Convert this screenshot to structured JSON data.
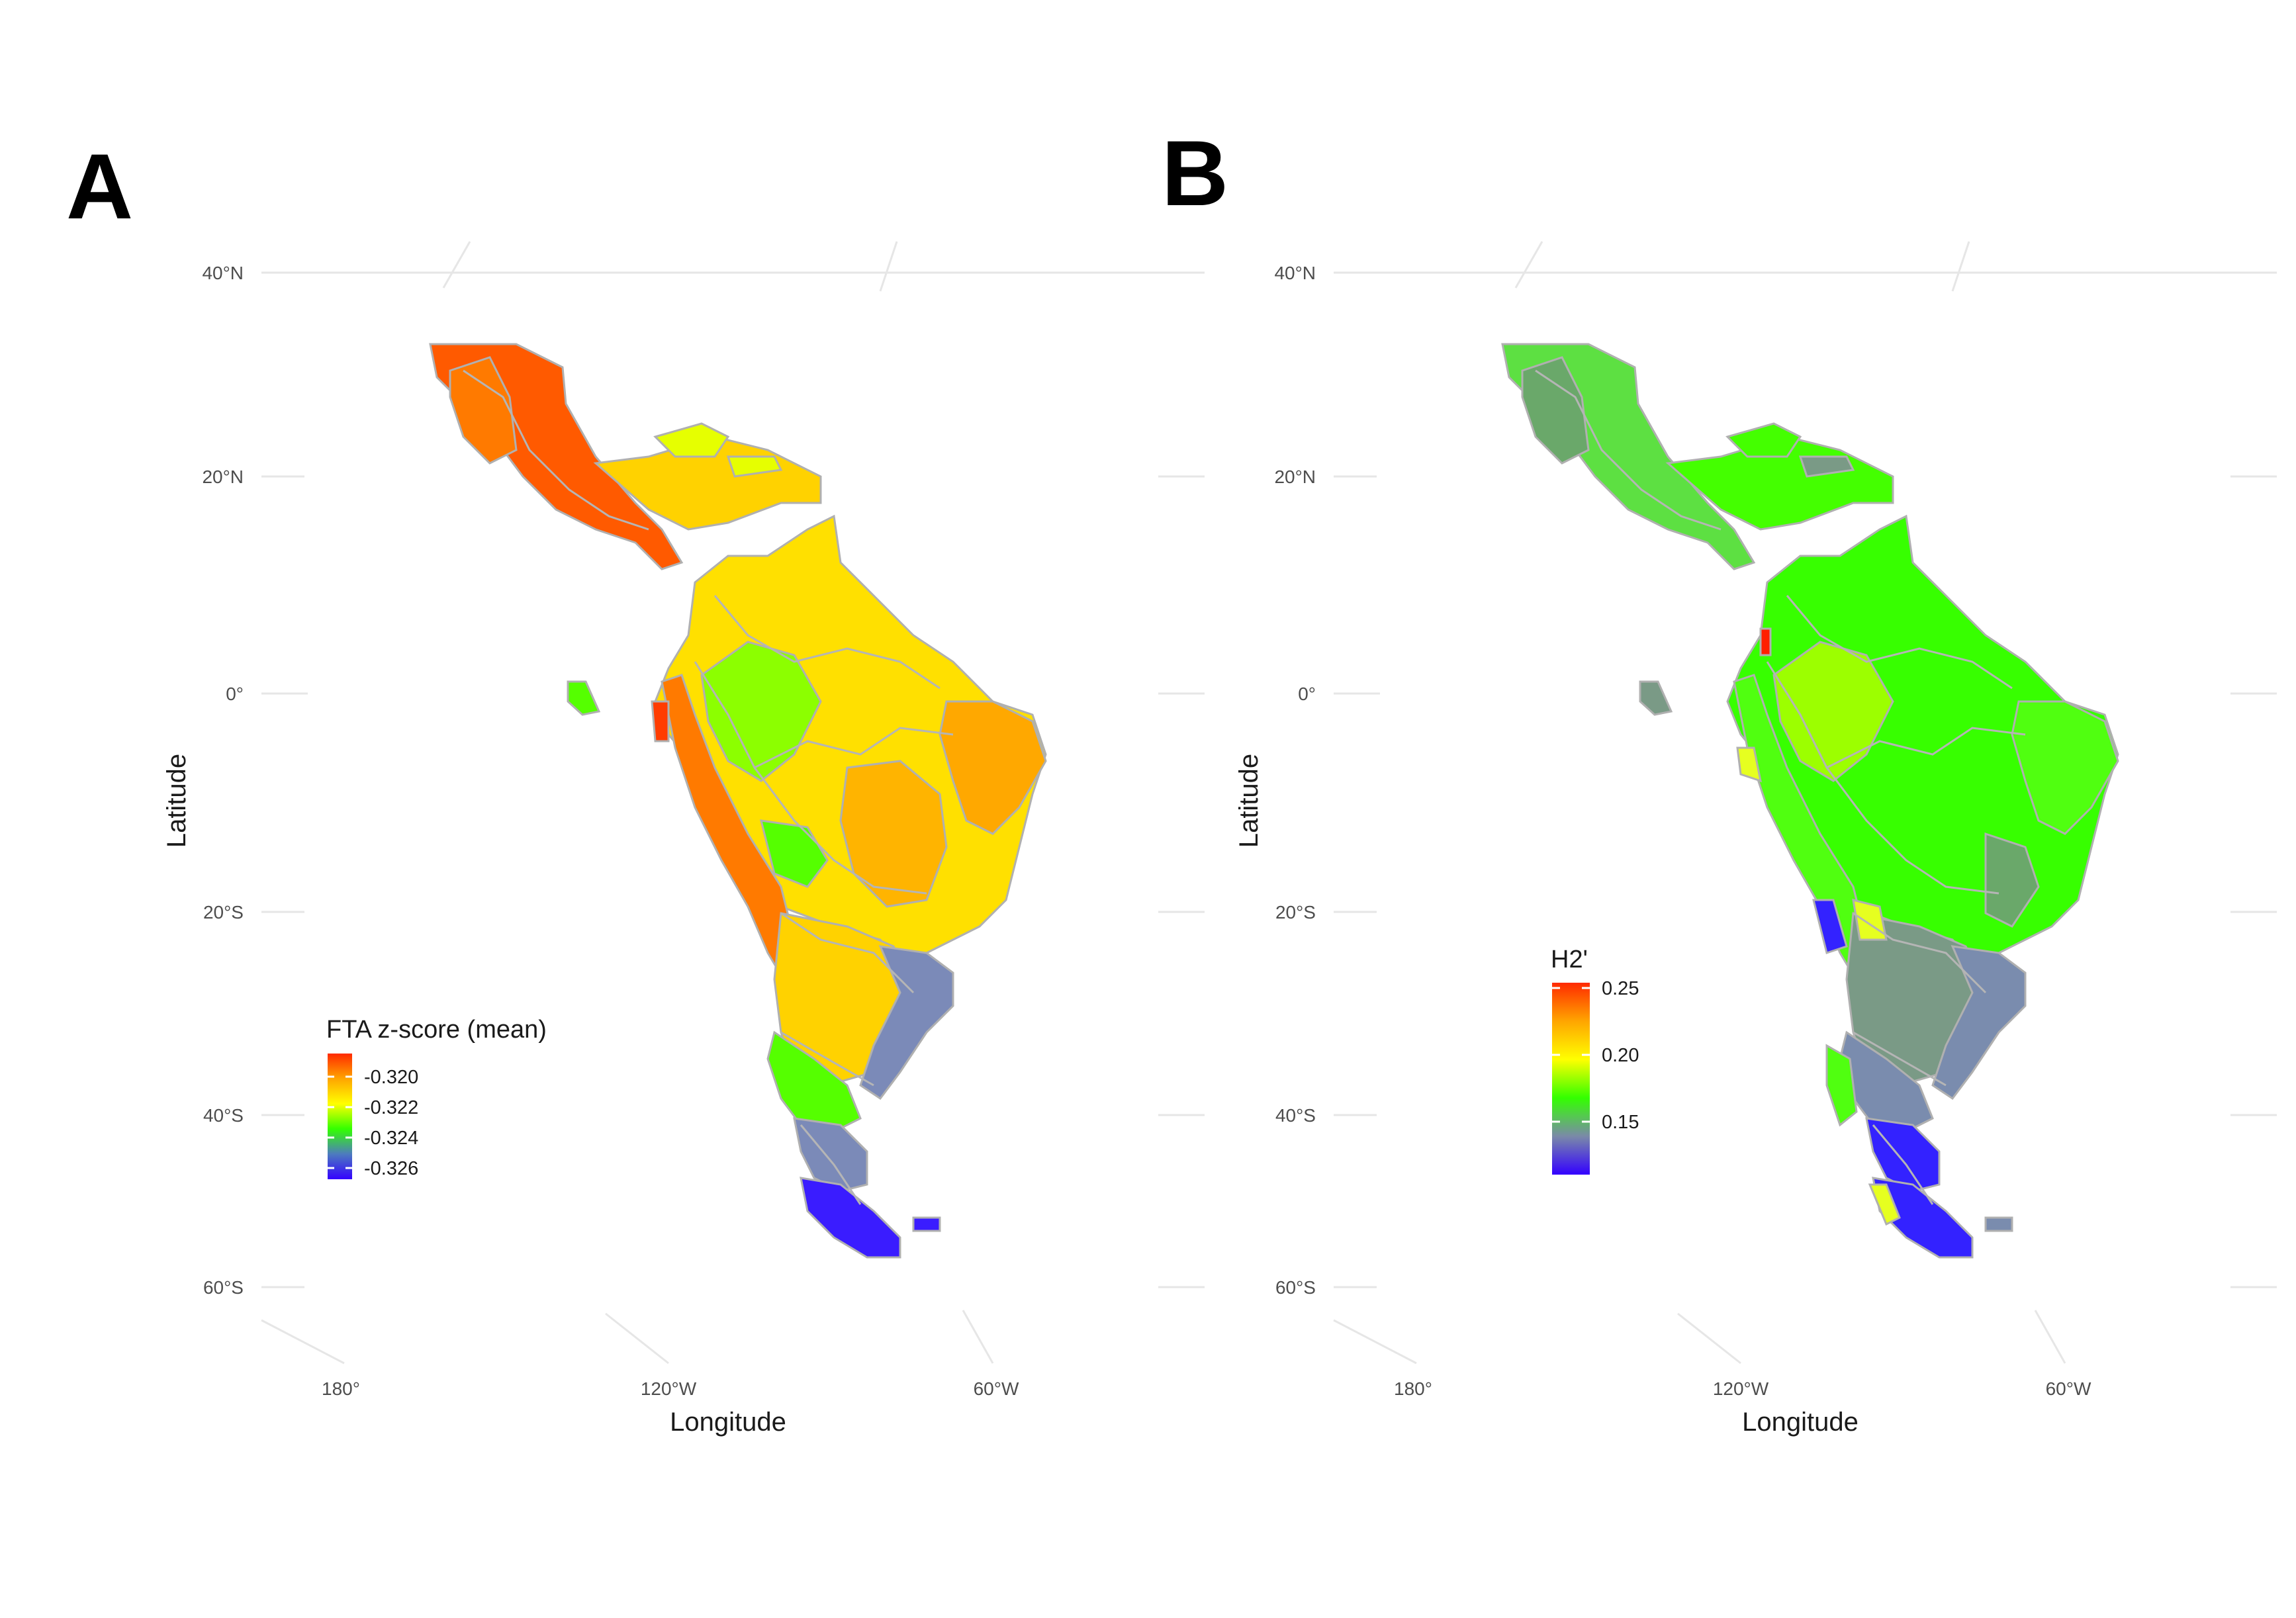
{
  "panels": [
    {
      "letter": "A",
      "lat_labels": [
        "40°N",
        "20°N",
        "0°",
        "20°S",
        "40°S",
        "60°S"
      ],
      "lon_labels": [
        "180°",
        "120°W",
        "60°W"
      ],
      "xlabel": "Longitude",
      "ylabel": "Latitude",
      "legend": {
        "title": "FTA z-score (mean)",
        "ticks": [
          "-0.320",
          "-0.322",
          "-0.324",
          "-0.326"
        ],
        "colors": [
          "#ff2a00",
          "#ffa500",
          "#ffff00",
          "#33ff00",
          "#4d7bbf",
          "#3300ff"
        ]
      },
      "regions": [
        {
          "color": "#ff5a00"
        },
        {
          "color": "#ff7a00"
        },
        {
          "color": "#ffd200"
        },
        {
          "color": "#ffa800"
        },
        {
          "color": "#e6ff00"
        },
        {
          "color": "#ffb400"
        },
        {
          "color": "#ffe000"
        },
        {
          "color": "#8cff00"
        },
        {
          "color": "#55ff00"
        },
        {
          "color": "#7b8ab8"
        },
        {
          "color": "#3a1cff"
        },
        {
          "color": "#ff3c00"
        }
      ]
    },
    {
      "letter": "B",
      "lat_labels": [
        "40°N",
        "20°N",
        "0°",
        "20°S",
        "40°S",
        "60°S"
      ],
      "lon_labels": [
        "180°",
        "120°W",
        "60°W"
      ],
      "xlabel": "Longitude",
      "ylabel": "Latitude",
      "legend": {
        "title": "H2'",
        "ticks": [
          "0.25",
          "0.20",
          "0.15"
        ],
        "colors": [
          "#ff2a00",
          "#ffa500",
          "#ffff00",
          "#33ff00",
          "#7a8aa8",
          "#3300ff"
        ]
      },
      "regions": [
        {
          "color": "#44ff00"
        },
        {
          "color": "#5de042"
        },
        {
          "color": "#9cff00"
        },
        {
          "color": "#6aa86a"
        },
        {
          "color": "#37ff00"
        },
        {
          "color": "#7a9a86"
        },
        {
          "color": "#50ff10"
        },
        {
          "color": "#7a8cae"
        },
        {
          "color": "#3322ff"
        },
        {
          "color": "#e6ff20"
        },
        {
          "color": "#ff2000"
        }
      ]
    }
  ]
}
